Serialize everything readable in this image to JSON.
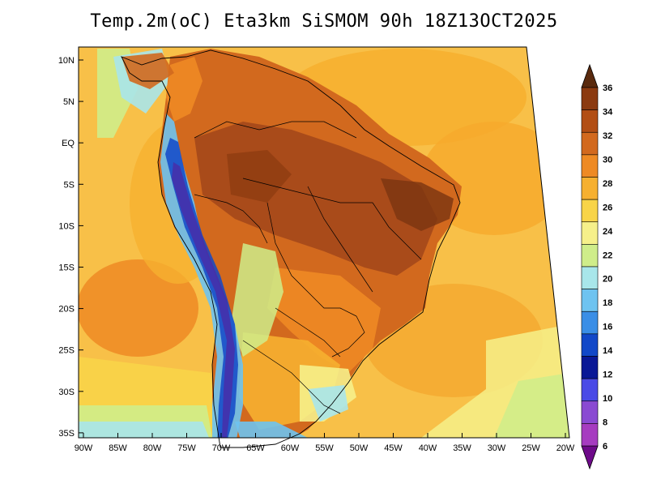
{
  "title": "Temp.2m(oC) Eta3km SiSMOM 90h 18Z13OCT2025",
  "lat_labels": [
    "10N",
    "5N",
    "EQ",
    "5S",
    "10S",
    "15S",
    "20S",
    "25S",
    "30S",
    "35S"
  ],
  "lon_labels": [
    "90W",
    "85W",
    "80W",
    "75W",
    "70W",
    "65W",
    "60W",
    "55W",
    "50W",
    "45W",
    "40W",
    "35W",
    "30W",
    "25W",
    "20W"
  ],
  "colorbar": {
    "unit": "oC",
    "labels": [
      "36",
      "34",
      "32",
      "30",
      "28",
      "26",
      "24",
      "22",
      "20",
      "18",
      "16",
      "14",
      "12",
      "10",
      "8",
      "6"
    ],
    "colors": [
      "#5a2a0e",
      "#8b3a10",
      "#b24e14",
      "#d2691e",
      "#ee8a24",
      "#f6b030",
      "#f8d448",
      "#f6f08a",
      "#cfed8a",
      "#a8e6ea",
      "#6ec3f0",
      "#3a8ee6",
      "#1248c8",
      "#0a1896",
      "#4a4ae6",
      "#8a4ad2",
      "#a63cc0",
      "#6e0a8a"
    ]
  }
}
